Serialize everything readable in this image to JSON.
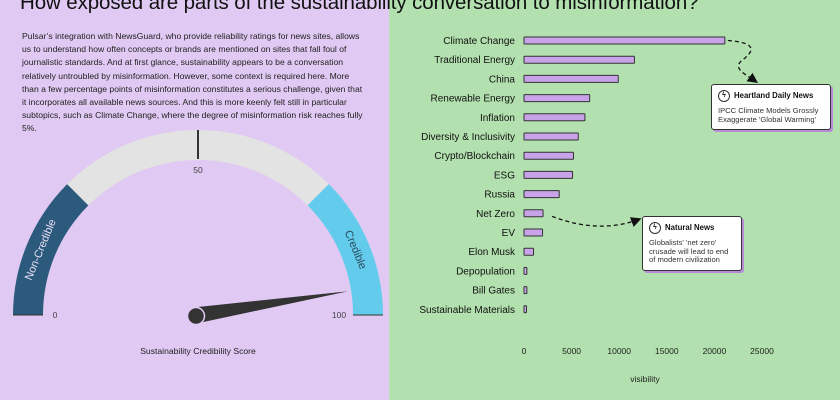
{
  "page": {
    "title": "How exposed are parts of the sustainability conversation to misinformation?",
    "intro": "Pulsar’s integration with NewsGuard, who provide reliability ratings for news sites, allows us to understand how often concepts or brands are mentioned on sites that fall foul of journalistic standards. And at first glance, sustainability appears to be a conversation relatively untroubled by misinformation. However, some context is required here. More than a few percentage points of misinformation constitutes a serious challenge, given that it incorporates all available news sources. And this is more keenly felt still in particular subtopics, such as Climate Change, where the degree of misinformation risk reaches fully 5%."
  },
  "gauge": {
    "label": "Sustainability Credibility Score",
    "min_label": "0",
    "mid_label": "50",
    "max_label": "100",
    "min": 0,
    "max": 100,
    "value": 95,
    "band_low_label": "Non-Credible",
    "band_high_label": "Credible",
    "colors": {
      "low": "#2c5a7c",
      "mid": "#e3e3e3",
      "high": "#63ccec",
      "needle": "#333333"
    }
  },
  "callouts": [
    {
      "source": "Heartland Daily News",
      "text": "IPCC Climate Models Grossly Exaggerate 'Global Warming'",
      "icon": "lightning-icon",
      "points_to": "Climate Change"
    },
    {
      "source": "Natural News",
      "text": "Globalists' 'net zero' crusade will lead to end of modern civilization",
      "icon": "lightning-icon",
      "points_to": "Net Zero"
    }
  ],
  "chart_data": {
    "type": "bar",
    "orientation": "horizontal",
    "title": "",
    "xlabel": "visibility",
    "ylabel": "",
    "xlim": [
      0,
      25000
    ],
    "xticks": [
      0,
      5000,
      10000,
      15000,
      20000,
      25000
    ],
    "xtick_labels": [
      "0",
      "5000",
      "10000",
      "15000",
      "20000",
      "25000"
    ],
    "grid": false,
    "bar_color": "#c8a3ea",
    "categories": [
      "Climate Change",
      "Traditional Energy",
      "China",
      "Renewable Energy",
      "Inflation",
      "Diversity & Inclusivity",
      "Crypto/Blockchain",
      "ESG",
      "Russia",
      "Net Zero",
      "EV",
      "Elon Musk",
      "Depopulation",
      "Bill Gates",
      "Sustainable Materials"
    ],
    "values": [
      21100,
      11600,
      9900,
      6900,
      6400,
      5700,
      5200,
      5100,
      3700,
      2000,
      1950,
      1000,
      300,
      300,
      250
    ]
  }
}
